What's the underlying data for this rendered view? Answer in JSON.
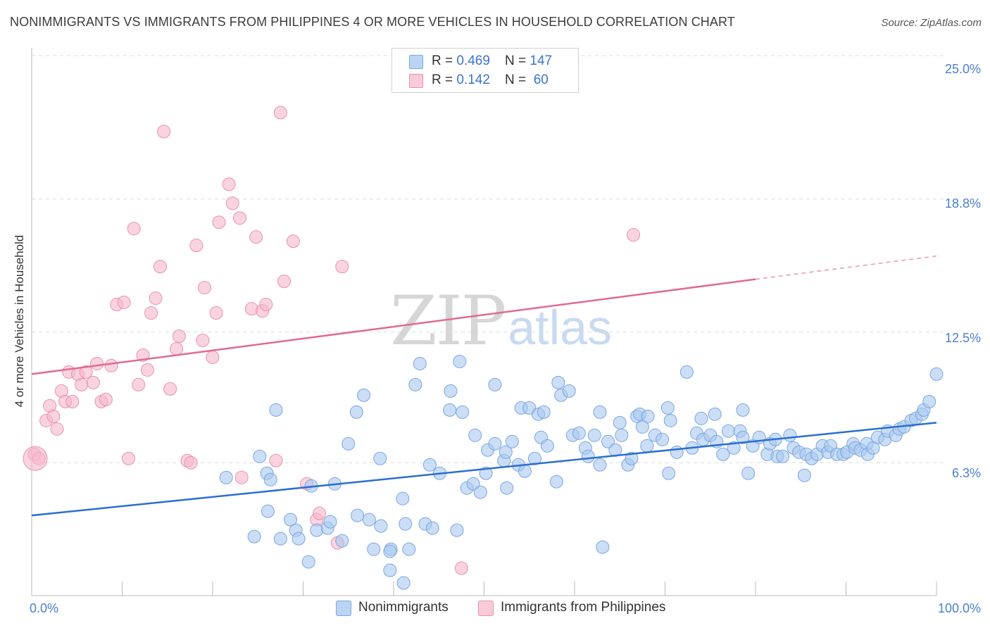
{
  "title": "NONIMMIGRANTS VS IMMIGRANTS FROM PHILIPPINES 4 OR MORE VEHICLES IN HOUSEHOLD CORRELATION CHART",
  "source": "Source: ZipAtlas.com",
  "watermark": {
    "zip": "ZIP",
    "atlas": "atlas"
  },
  "legend": {
    "rows": [
      {
        "r_label": "R = ",
        "r_value": "0.469",
        "n_label": "N = ",
        "n_value": "147",
        "color": "#a9c8f0"
      },
      {
        "r_label": "R = ",
        "r_value": "0.142",
        "n_label": "N = ",
        "n_value": " 60",
        "color": "#f5b8cb"
      }
    ]
  },
  "bottom_legend": [
    {
      "label": "Nonimmigrants",
      "color": "#a9c8f0"
    },
    {
      "label": "Immigrants from Philippines",
      "color": "#f5b8cb"
    }
  ],
  "chart_data": {
    "type": "scatter",
    "title": "NONIMMIGRANTS VS IMMIGRANTS FROM PHILIPPINES 4 OR MORE VEHICLES IN HOUSEHOLD CORRELATION CHART",
    "xlabel": "",
    "ylabel": "4 or more Vehicles in Household",
    "xlim": [
      0,
      100
    ],
    "ylim": [
      0,
      25
    ],
    "x_tick_labels": [
      "0.0%",
      "100.0%"
    ],
    "y_ticks": [
      6.3,
      12.5,
      18.8,
      25.0
    ],
    "y_tick_labels": [
      "6.3%",
      "12.5%",
      "18.8%",
      "25.0%"
    ],
    "grid": true,
    "legend_position": "top-center",
    "series": [
      {
        "name": "Nonimmigrants",
        "color": "#a9c8f0",
        "stroke": "#7aa6e0",
        "trend": {
          "x": [
            0,
            100
          ],
          "y": [
            3.8,
            8.2
          ],
          "color": "#2a6fd0"
        },
        "points": [
          [
            21.5,
            5.6
          ],
          [
            25.2,
            6.6
          ],
          [
            26.1,
            4.0
          ],
          [
            24.6,
            2.8
          ],
          [
            27.5,
            2.7
          ],
          [
            26.0,
            5.8
          ],
          [
            26.4,
            5.5
          ],
          [
            27.0,
            8.8
          ],
          [
            28.6,
            3.6
          ],
          [
            29.2,
            3.1
          ],
          [
            29.5,
            2.7
          ],
          [
            30.6,
            1.6
          ],
          [
            30.9,
            5.2
          ],
          [
            31.5,
            3.1
          ],
          [
            32.7,
            3.2
          ],
          [
            33.0,
            3.5
          ],
          [
            33.5,
            5.3
          ],
          [
            34.3,
            2.6
          ],
          [
            35.0,
            7.2
          ],
          [
            35.9,
            8.7
          ],
          [
            36.0,
            3.8
          ],
          [
            36.7,
            9.5
          ],
          [
            37.3,
            3.6
          ],
          [
            37.8,
            2.2
          ],
          [
            38.5,
            6.5
          ],
          [
            38.6,
            3.3
          ],
          [
            39.7,
            2.2
          ],
          [
            39.6,
            1.2
          ],
          [
            39.6,
            2.1
          ],
          [
            41.0,
            4.6
          ],
          [
            41.1,
            0.6
          ],
          [
            41.3,
            3.4
          ],
          [
            41.7,
            2.2
          ],
          [
            42.4,
            10.0
          ],
          [
            42.9,
            11.0
          ],
          [
            43.5,
            3.4
          ],
          [
            44.0,
            6.2
          ],
          [
            44.3,
            3.2
          ],
          [
            45.1,
            5.8
          ],
          [
            46.3,
            9.7
          ],
          [
            46.2,
            8.8
          ],
          [
            47.0,
            3.1
          ],
          [
            47.3,
            11.1
          ],
          [
            47.6,
            8.7
          ],
          [
            48.1,
            5.1
          ],
          [
            48.8,
            5.3
          ],
          [
            49.0,
            7.6
          ],
          [
            49.6,
            4.9
          ],
          [
            50.2,
            5.8
          ],
          [
            50.4,
            6.9
          ],
          [
            51.2,
            10.0
          ],
          [
            51.2,
            7.2
          ],
          [
            52.2,
            6.4
          ],
          [
            52.4,
            6.8
          ],
          [
            52.5,
            5.1
          ],
          [
            53.1,
            7.3
          ],
          [
            53.8,
            6.2
          ],
          [
            54.1,
            8.9
          ],
          [
            54.5,
            5.9
          ],
          [
            55.0,
            8.9
          ],
          [
            55.6,
            6.5
          ],
          [
            56.0,
            8.6
          ],
          [
            56.6,
            8.7
          ],
          [
            56.3,
            7.5
          ],
          [
            57.0,
            7.1
          ],
          [
            58.0,
            5.4
          ],
          [
            58.2,
            10.1
          ],
          [
            58.5,
            9.5
          ],
          [
            59.4,
            9.7
          ],
          [
            59.8,
            7.6
          ],
          [
            60.5,
            7.7
          ],
          [
            61.2,
            7.0
          ],
          [
            61.5,
            6.6
          ],
          [
            62.2,
            7.6
          ],
          [
            62.8,
            8.7
          ],
          [
            62.8,
            6.2
          ],
          [
            63.1,
            2.3
          ],
          [
            63.7,
            7.3
          ],
          [
            64.5,
            6.9
          ],
          [
            65.0,
            8.2
          ],
          [
            65.2,
            7.6
          ],
          [
            65.9,
            6.2
          ],
          [
            66.3,
            6.5
          ],
          [
            66.9,
            8.5
          ],
          [
            67.2,
            8.6
          ],
          [
            67.5,
            8.0
          ],
          [
            68.1,
            8.5
          ],
          [
            68.0,
            7.1
          ],
          [
            68.9,
            7.6
          ],
          [
            69.7,
            7.4
          ],
          [
            70.3,
            8.9
          ],
          [
            70.6,
            8.3
          ],
          [
            70.4,
            5.8
          ],
          [
            71.3,
            6.8
          ],
          [
            72.4,
            10.6
          ],
          [
            73.0,
            7.0
          ],
          [
            73.5,
            7.7
          ],
          [
            74.0,
            8.4
          ],
          [
            74.2,
            7.4
          ],
          [
            75.5,
            8.6
          ],
          [
            75.0,
            7.6
          ],
          [
            75.7,
            7.3
          ],
          [
            76.4,
            6.7
          ],
          [
            77.0,
            7.8
          ],
          [
            77.6,
            7.0
          ],
          [
            78.3,
            7.8
          ],
          [
            78.6,
            8.8
          ],
          [
            78.6,
            7.5
          ],
          [
            79.2,
            5.8
          ],
          [
            79.7,
            7.1
          ],
          [
            80.4,
            7.5
          ],
          [
            81.3,
            6.7
          ],
          [
            81.6,
            7.2
          ],
          [
            82.2,
            7.4
          ],
          [
            82.4,
            6.6
          ],
          [
            83.0,
            6.6
          ],
          [
            83.8,
            7.6
          ],
          [
            84.2,
            7.0
          ],
          [
            84.8,
            6.8
          ],
          [
            85.4,
            5.7
          ],
          [
            85.6,
            6.7
          ],
          [
            86.2,
            6.5
          ],
          [
            86.8,
            6.7
          ],
          [
            87.4,
            7.1
          ],
          [
            88.0,
            6.8
          ],
          [
            88.3,
            7.1
          ],
          [
            89.0,
            6.7
          ],
          [
            89.7,
            6.7
          ],
          [
            90.1,
            6.8
          ],
          [
            90.8,
            7.2
          ],
          [
            91.0,
            7.0
          ],
          [
            91.6,
            6.9
          ],
          [
            92.3,
            7.2
          ],
          [
            92.4,
            6.7
          ],
          [
            93.0,
            7.0
          ],
          [
            93.5,
            7.5
          ],
          [
            94.3,
            7.4
          ],
          [
            94.6,
            7.8
          ],
          [
            95.5,
            7.6
          ],
          [
            95.9,
            7.9
          ],
          [
            96.4,
            8.0
          ],
          [
            97.2,
            8.3
          ],
          [
            97.7,
            8.4
          ],
          [
            98.4,
            8.6
          ],
          [
            98.6,
            8.8
          ],
          [
            99.2,
            9.2
          ],
          [
            100.0,
            10.5
          ]
        ]
      },
      {
        "name": "Immigrants from Philippines",
        "color": "#f5b8cb",
        "stroke": "#ea90ac",
        "trend": {
          "x": [
            0,
            80
          ],
          "y": [
            10.5,
            15.0
          ],
          "dashed_to": [
            100,
            16.1
          ],
          "color": "#e06a92"
        },
        "points": [
          [
            0.3,
            6.7
          ],
          [
            0.8,
            6.5
          ],
          [
            1.6,
            8.3
          ],
          [
            2.0,
            9.0
          ],
          [
            2.4,
            8.5
          ],
          [
            2.8,
            7.9
          ],
          [
            3.3,
            9.7
          ],
          [
            3.7,
            9.2
          ],
          [
            4.1,
            10.6
          ],
          [
            4.5,
            9.2
          ],
          [
            5.1,
            10.5
          ],
          [
            5.5,
            10.0
          ],
          [
            6.0,
            10.6
          ],
          [
            6.8,
            10.1
          ],
          [
            7.2,
            11.0
          ],
          [
            7.7,
            9.2
          ],
          [
            8.2,
            9.3
          ],
          [
            8.8,
            10.9
          ],
          [
            9.4,
            13.8
          ],
          [
            10.2,
            13.9
          ],
          [
            10.7,
            6.5
          ],
          [
            11.3,
            17.4
          ],
          [
            11.8,
            10.0
          ],
          [
            12.3,
            11.4
          ],
          [
            12.8,
            10.7
          ],
          [
            13.2,
            13.4
          ],
          [
            13.7,
            14.1
          ],
          [
            14.2,
            15.6
          ],
          [
            14.6,
            22.0
          ],
          [
            15.3,
            9.8
          ],
          [
            16.0,
            11.7
          ],
          [
            16.3,
            12.3
          ],
          [
            17.2,
            6.4
          ],
          [
            17.6,
            6.3
          ],
          [
            18.2,
            16.6
          ],
          [
            18.9,
            12.1
          ],
          [
            19.1,
            14.6
          ],
          [
            20.0,
            11.3
          ],
          [
            20.4,
            13.4
          ],
          [
            20.7,
            17.7
          ],
          [
            21.8,
            19.5
          ],
          [
            22.2,
            18.6
          ],
          [
            23.0,
            17.9
          ],
          [
            23.2,
            5.6
          ],
          [
            24.3,
            13.6
          ],
          [
            24.8,
            17.0
          ],
          [
            25.5,
            13.5
          ],
          [
            25.9,
            13.8
          ],
          [
            27.0,
            6.4
          ],
          [
            27.5,
            22.9
          ],
          [
            27.9,
            14.9
          ],
          [
            28.9,
            16.8
          ],
          [
            30.4,
            5.3
          ],
          [
            31.5,
            3.6
          ],
          [
            31.8,
            3.9
          ],
          [
            33.8,
            2.5
          ],
          [
            34.3,
            15.6
          ],
          [
            47.5,
            1.3
          ],
          [
            66.5,
            17.1
          ],
          [
            0.0,
            6.5
          ]
        ]
      }
    ]
  }
}
